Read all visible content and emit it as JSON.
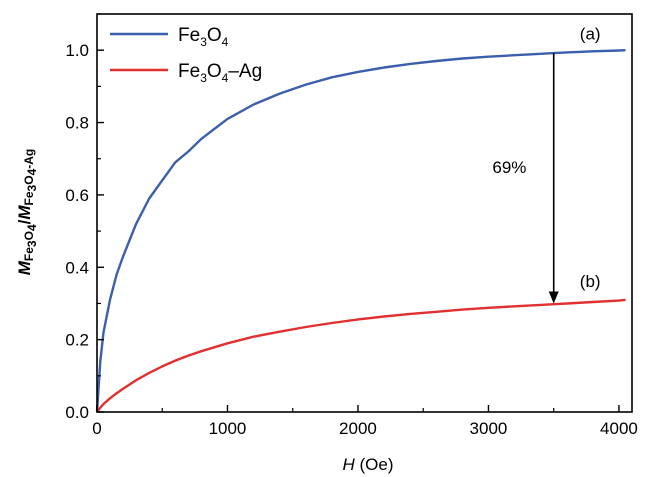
{
  "chart_data": {
    "type": "line",
    "xlabel": {
      "italic": "H",
      "rest": " (Oe)"
    },
    "ylabel": {
      "m1": "M",
      "sub1a": "Fe",
      "sub1b": "3",
      "sub1c": "O",
      "sub1d": "4",
      "slash": "/",
      "m2": "M",
      "sub2a": "Fe",
      "sub2b": "3",
      "sub2c": "O",
      "sub2d": "4",
      "sub2e": "-Ag"
    },
    "xlim": [
      0,
      4100
    ],
    "ylim": [
      0,
      1.1
    ],
    "xticks": [
      "0",
      "1000",
      "2000",
      "3000",
      "4000"
    ],
    "xtick_values": [
      0,
      1000,
      2000,
      3000,
      4000
    ],
    "yticks": [
      "0.0",
      "0.2",
      "0.4",
      "0.6",
      "0.8",
      "1.0"
    ],
    "ytick_values": [
      0.0,
      0.2,
      0.4,
      0.6,
      0.8,
      1.0
    ],
    "legend_position": "top-left",
    "series": [
      {
        "name": "Fe3O4",
        "legend": {
          "a": "Fe",
          "b": "3",
          "c": "O",
          "d": "4",
          "e": ""
        },
        "color": "#3b5fad",
        "x": [
          0,
          25,
          50,
          100,
          150,
          200,
          300,
          400,
          500,
          600,
          700,
          800,
          1000,
          1200,
          1400,
          1600,
          1800,
          2000,
          2200,
          2400,
          2600,
          2800,
          3000,
          3200,
          3400,
          3500,
          3600,
          3800,
          4000,
          4050
        ],
        "y": [
          0.0,
          0.14,
          0.22,
          0.31,
          0.38,
          0.43,
          0.52,
          0.59,
          0.64,
          0.69,
          0.72,
          0.755,
          0.81,
          0.85,
          0.88,
          0.905,
          0.925,
          0.94,
          0.952,
          0.962,
          0.97,
          0.977,
          0.982,
          0.986,
          0.99,
          0.992,
          0.994,
          0.997,
          0.999,
          1.0
        ]
      },
      {
        "name": "Fe3O4-Ag",
        "legend": {
          "a": "Fe",
          "b": "3",
          "c": "O",
          "d": "4",
          "e": "–Ag"
        },
        "color": "#e03030",
        "x": [
          0,
          25,
          50,
          100,
          150,
          200,
          300,
          400,
          500,
          600,
          700,
          800,
          1000,
          1200,
          1400,
          1600,
          1800,
          2000,
          2200,
          2400,
          2600,
          2800,
          3000,
          3200,
          3400,
          3500,
          3600,
          3800,
          4000,
          4050
        ],
        "y": [
          0.0,
          0.012,
          0.022,
          0.038,
          0.052,
          0.064,
          0.088,
          0.108,
          0.126,
          0.142,
          0.156,
          0.168,
          0.19,
          0.208,
          0.222,
          0.235,
          0.246,
          0.256,
          0.264,
          0.271,
          0.277,
          0.283,
          0.288,
          0.292,
          0.296,
          0.298,
          0.3,
          0.304,
          0.308,
          0.31
        ]
      }
    ],
    "annotations": [
      {
        "text": "(a)",
        "x": 3700,
        "y": 1.03
      },
      {
        "text": "(b)",
        "x": 3700,
        "y": 0.345
      },
      {
        "text": "69%",
        "x": 3030,
        "y": 0.66
      }
    ],
    "arrow": {
      "x": 3500,
      "y_start": 0.992,
      "y_end": 0.3
    }
  }
}
